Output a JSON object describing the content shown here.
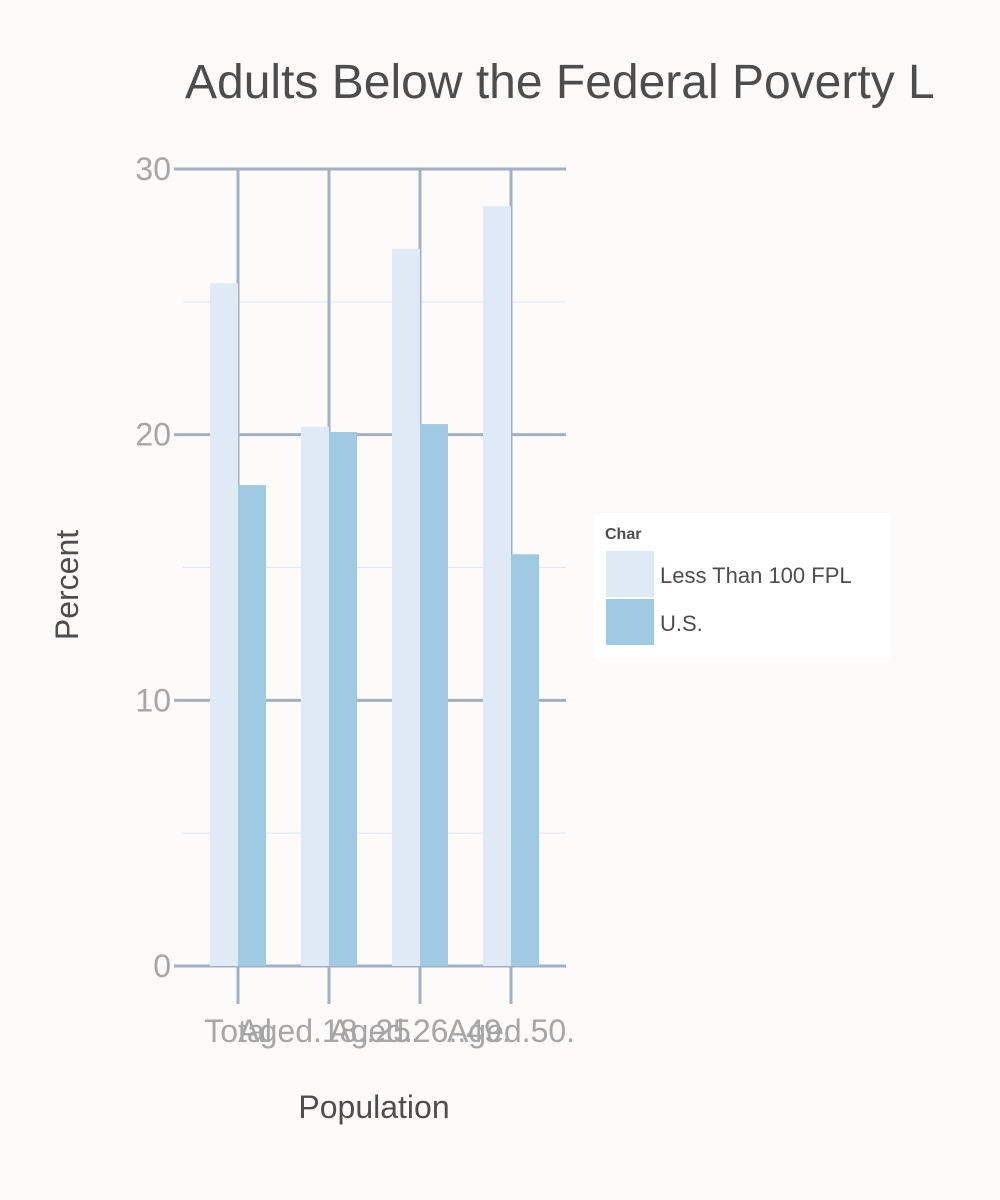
{
  "chart_data": {
    "type": "bar",
    "title": "Adults Below the Federal Poverty L",
    "xlabel": "Population",
    "ylabel": "Percent",
    "categories": [
      "Total",
      "Aged.18..25.",
      "Aged.26..49.",
      "Aged.50."
    ],
    "series": [
      {
        "name": "Less Than 100 FPL",
        "values": [
          25.7,
          20.3,
          27.0,
          28.6
        ]
      },
      {
        "name": "U.S.",
        "values": [
          18.1,
          20.1,
          20.4,
          15.5
        ]
      }
    ],
    "ylim": [
      0,
      30
    ],
    "yticks": [
      0,
      10,
      20,
      30
    ],
    "grid": true,
    "legend": {
      "title": "Char",
      "position": "right"
    }
  },
  "colors": {
    "background": "#fdfbfa",
    "panel": "#fdfbfa",
    "grid_major": "#a3b0c4",
    "grid_minor": "#dde6f5",
    "series": [
      "#dfeaf6",
      "#a0cae1"
    ],
    "legend_bg": "#ffffff"
  }
}
